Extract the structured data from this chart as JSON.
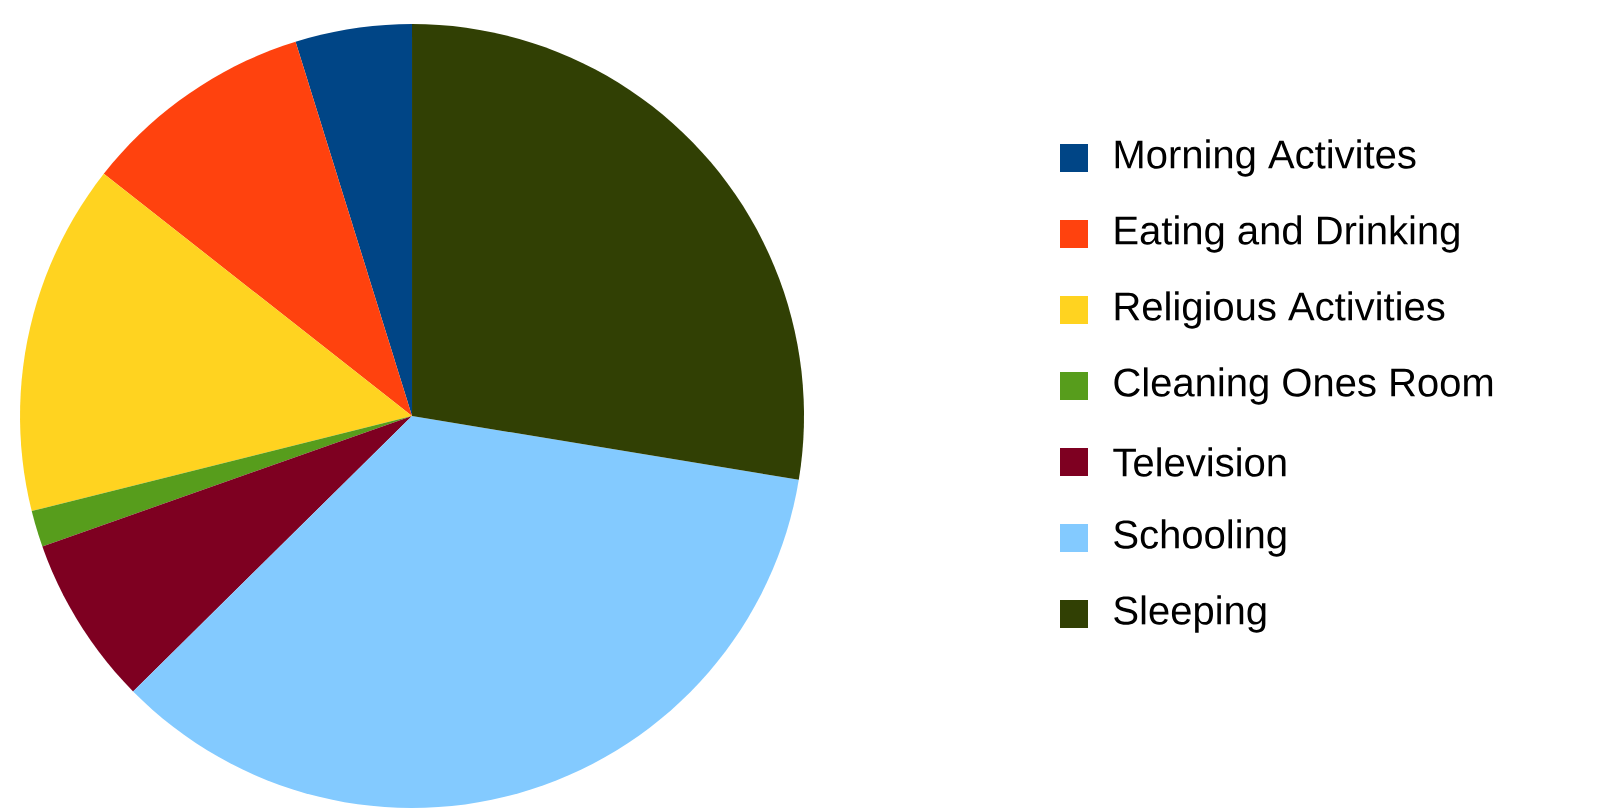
{
  "chart_data": {
    "type": "pie",
    "categories": [
      "Morning Activites",
      "Eating and Drinking",
      "Religious Activities",
      "Cleaning Ones Room",
      "Television",
      "Schooling",
      "Sleeping"
    ],
    "values": [
      4.8,
      9.6,
      14.5,
      1.5,
      7.0,
      35.0,
      27.6
    ],
    "colors": [
      "#004586",
      "#ff420e",
      "#ffd320",
      "#579d1c",
      "#7e0021",
      "#83caff",
      "#314004"
    ],
    "legend": "right"
  }
}
